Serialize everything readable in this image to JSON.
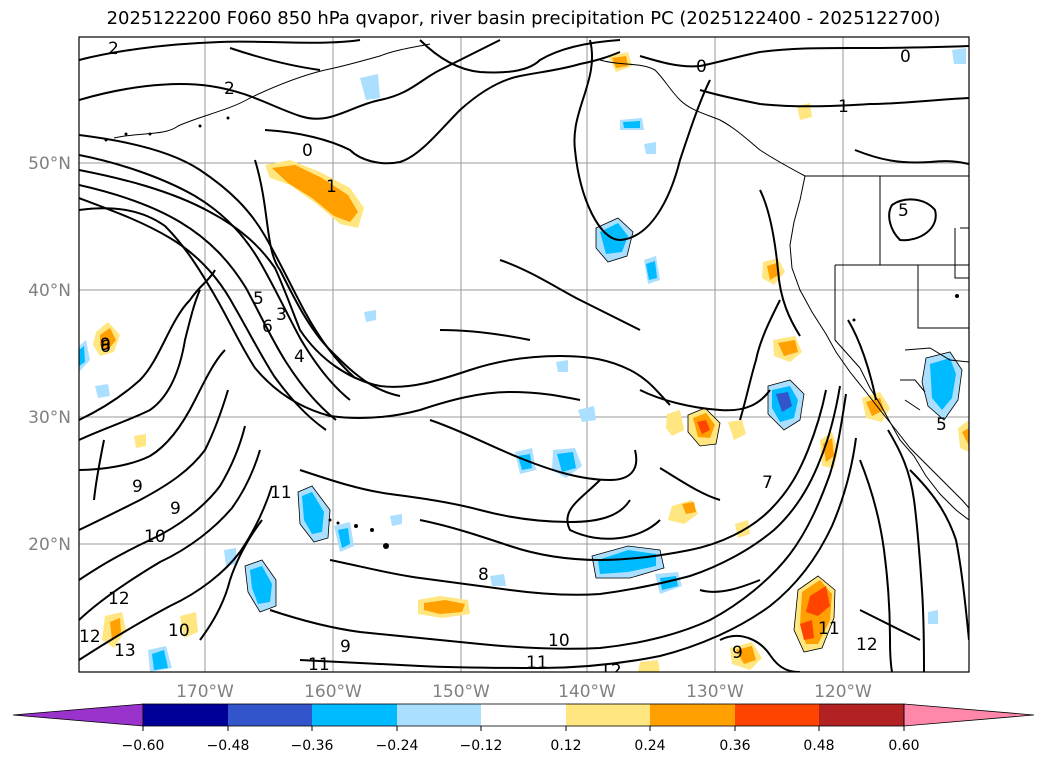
{
  "title": "2025122200 F060 850 hPa qvapor, river basin precipitation PC (2025122400 - 2025122700)",
  "map": {
    "longitude_labels": [
      "170°W",
      "160°W",
      "150°W",
      "140°W",
      "130°W",
      "120°W"
    ],
    "latitude_labels": [
      "50°N",
      "40°N",
      "30°N",
      "20°N"
    ],
    "contour_labels": [
      "2",
      "2",
      "0",
      "0",
      "1",
      "0",
      "1",
      "5",
      "5",
      "3",
      "4",
      "6",
      "6",
      "9",
      "9",
      "10",
      "11",
      "9",
      "12",
      "12",
      "13",
      "10",
      "11",
      "9",
      "8",
      "10",
      "11",
      "12",
      "7",
      "9",
      "11",
      "12",
      "5"
    ],
    "label_color": "#808080"
  },
  "colorbar": {
    "ticks": [
      "−0.60",
      "−0.48",
      "−0.36",
      "−0.24",
      "−0.12",
      "0.12",
      "0.24",
      "0.36",
      "0.48",
      "0.60"
    ],
    "colors": [
      "#9933cc",
      "#000099",
      "#3355cc",
      "#00bbff",
      "#aadfff",
      "#ffffff",
      "#ffe680",
      "#ff9f00",
      "#ff4400",
      "#b22222",
      "#ff88aa"
    ]
  }
}
